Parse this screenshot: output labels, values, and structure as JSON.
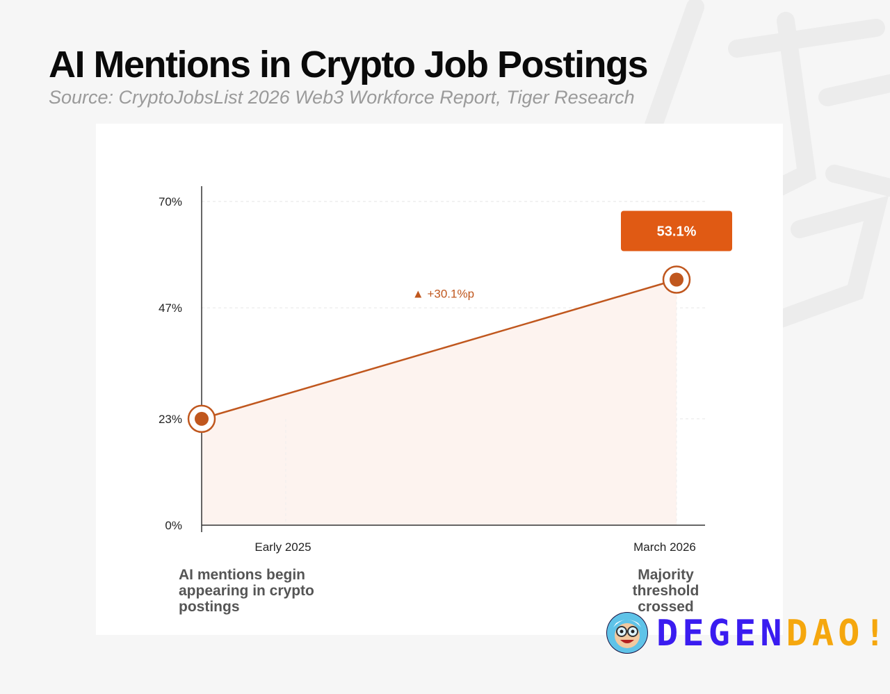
{
  "header": {
    "title": "AI Mentions in Crypto Job Postings",
    "subtitle": "Source: CryptoJobsList 2026 Web3 Workforce Report, Tiger Research"
  },
  "chart_data": {
    "type": "line",
    "title": "AI Mentions in Crypto Job Postings",
    "subtitle": "Source: CryptoJobsList 2026 Web3 Workforce Report, Tiger Research",
    "categories": [
      "Early 2025",
      "March 2026"
    ],
    "series": [
      {
        "values": [
          23,
          53.1
        ],
        "color": "#c0571e"
      }
    ],
    "yticks": [
      0,
      23,
      47,
      70
    ],
    "ytick_labels": [
      "0%",
      "23%",
      "47%",
      "70%"
    ],
    "ylim": [
      0,
      70
    ],
    "grid": true,
    "fill_under_line": true,
    "callout": {
      "label": "53.1%",
      "color": "#e05a14"
    },
    "delta_annotation": {
      "label": "+30.1%p",
      "symbol": "▲"
    },
    "notes": {
      "start": "AI mentions begin appearing in crypto postings",
      "end": "Majority threshold crossed"
    }
  },
  "branding": {
    "logo_part1": "DEGEN",
    "logo_part2": "DAO!",
    "logo_color1": "#3a1cf0",
    "logo_color2": "#f5a70e",
    "avatar_icon": "cartoon-scientist-avatar-icon"
  }
}
